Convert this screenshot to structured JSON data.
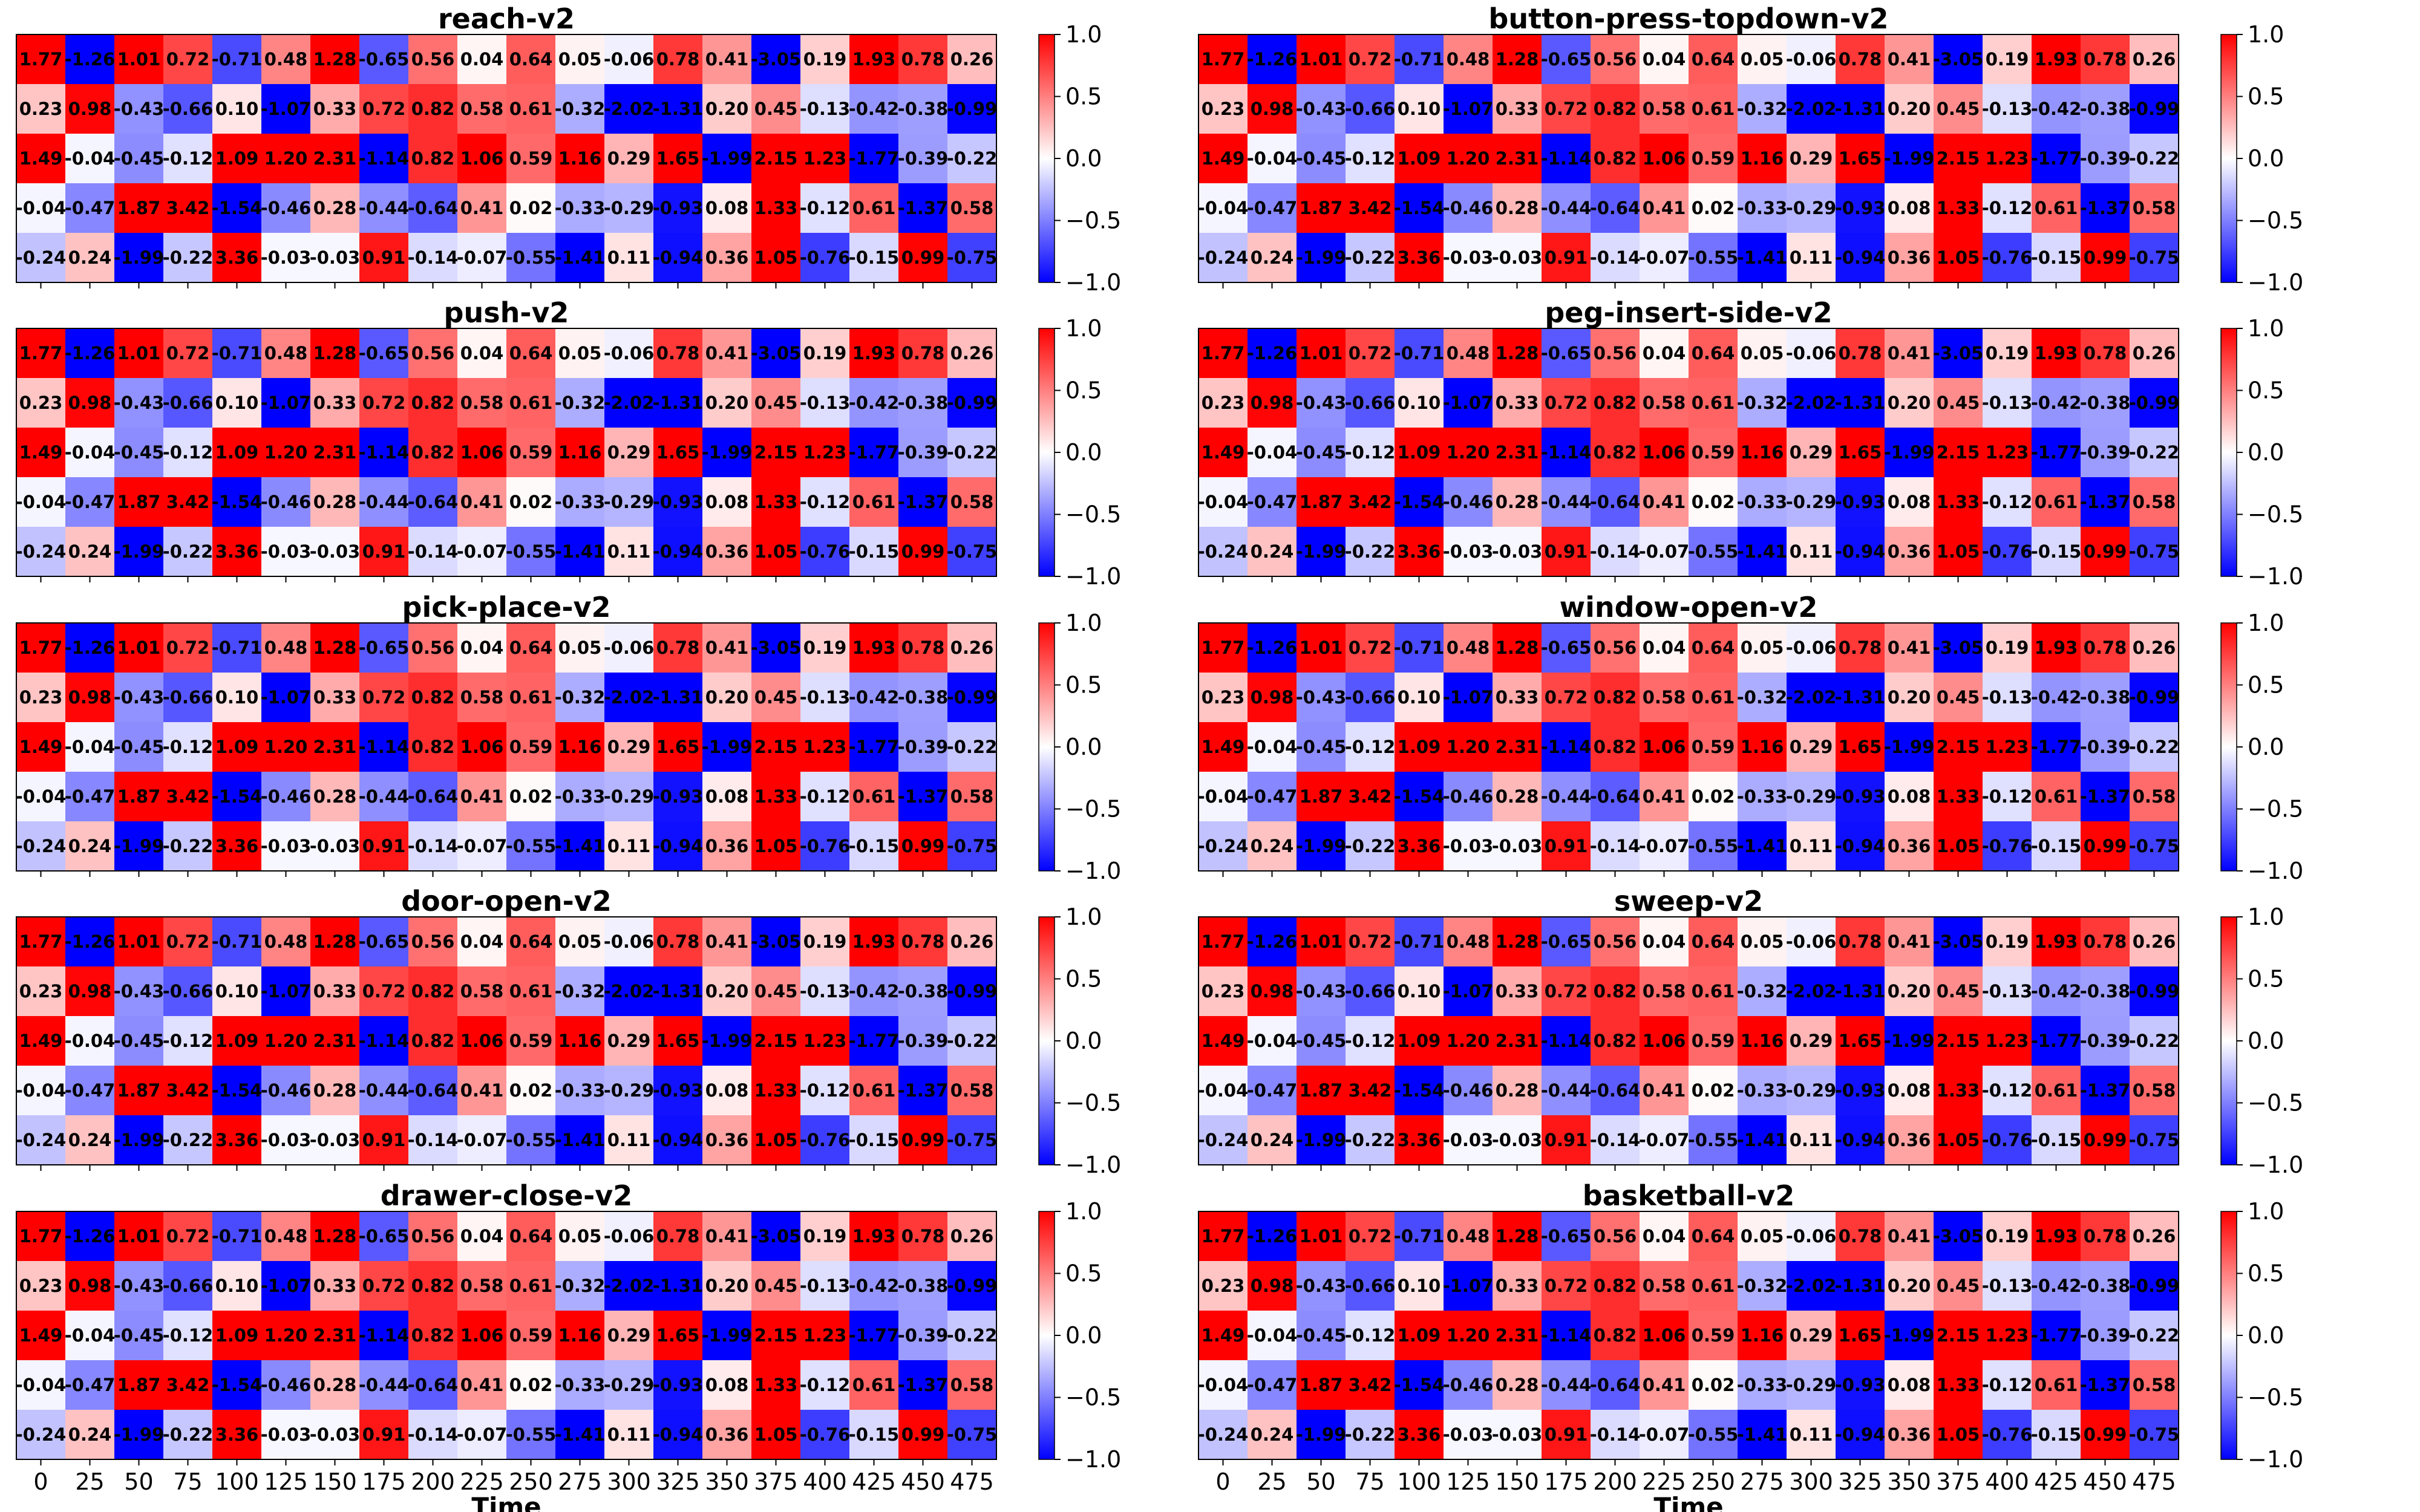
{
  "colors": {
    "low": "#0000ff",
    "mid": "#ffffff",
    "high": "#ff0000"
  },
  "chart_data": {
    "type": "heatmap",
    "layout": "5 rows x 2 columns of panels",
    "colormap": "bwr",
    "vmin": -1.0,
    "vmax": 1.0,
    "grid": false,
    "colorbar_ticks": [
      "1.0",
      "0.5",
      "0.0",
      "−0.5",
      "−1.0"
    ],
    "x_ticks": [
      "0",
      "25",
      "50",
      "75",
      "100",
      "125",
      "150",
      "175",
      "200",
      "225",
      "250",
      "275",
      "300",
      "325",
      "350",
      "375",
      "400",
      "425",
      "450",
      "475"
    ],
    "xlabel": "Time",
    "panels": [
      {
        "title": "reach-v2"
      },
      {
        "title": "button-press-topdown-v2"
      },
      {
        "title": "push-v2"
      },
      {
        "title": "peg-insert-side-v2"
      },
      {
        "title": "pick-place-v2"
      },
      {
        "title": "window-open-v2"
      },
      {
        "title": "door-open-v2"
      },
      {
        "title": "sweep-v2"
      },
      {
        "title": "drawer-close-v2"
      },
      {
        "title": "basketball-v2"
      }
    ],
    "values": [
      [
        1.77,
        -1.26,
        1.01,
        0.72,
        -0.71,
        0.48,
        1.28,
        -0.65,
        0.56,
        0.04,
        0.64,
        0.05,
        -0.06,
        0.78,
        0.41,
        -3.05,
        0.19,
        1.93,
        0.78,
        0.26
      ],
      [
        0.23,
        0.98,
        -0.43,
        -0.66,
        0.1,
        -1.07,
        0.33,
        0.72,
        0.82,
        0.58,
        0.61,
        -0.32,
        -2.02,
        -1.31,
        0.2,
        0.45,
        -0.13,
        -0.42,
        -0.38,
        -0.99
      ],
      [
        1.49,
        -0.04,
        -0.45,
        -0.12,
        1.09,
        1.2,
        2.31,
        -1.14,
        0.82,
        1.06,
        0.59,
        1.16,
        0.29,
        1.65,
        -1.99,
        2.15,
        1.23,
        -1.77,
        -0.39,
        -0.22
      ],
      [
        -0.04,
        -0.47,
        1.87,
        3.42,
        -1.54,
        -0.46,
        0.28,
        -0.44,
        -0.64,
        0.41,
        0.02,
        -0.33,
        -0.29,
        -0.93,
        0.08,
        1.33,
        -0.12,
        0.61,
        -1.37,
        0.58
      ],
      [
        -0.24,
        0.24,
        -1.99,
        -0.22,
        3.36,
        -0.03,
        -0.03,
        0.91,
        -0.14,
        -0.07,
        -0.55,
        -1.41,
        0.11,
        -0.94,
        0.36,
        1.05,
        -0.76,
        -0.15,
        0.99,
        -0.75
      ]
    ]
  }
}
